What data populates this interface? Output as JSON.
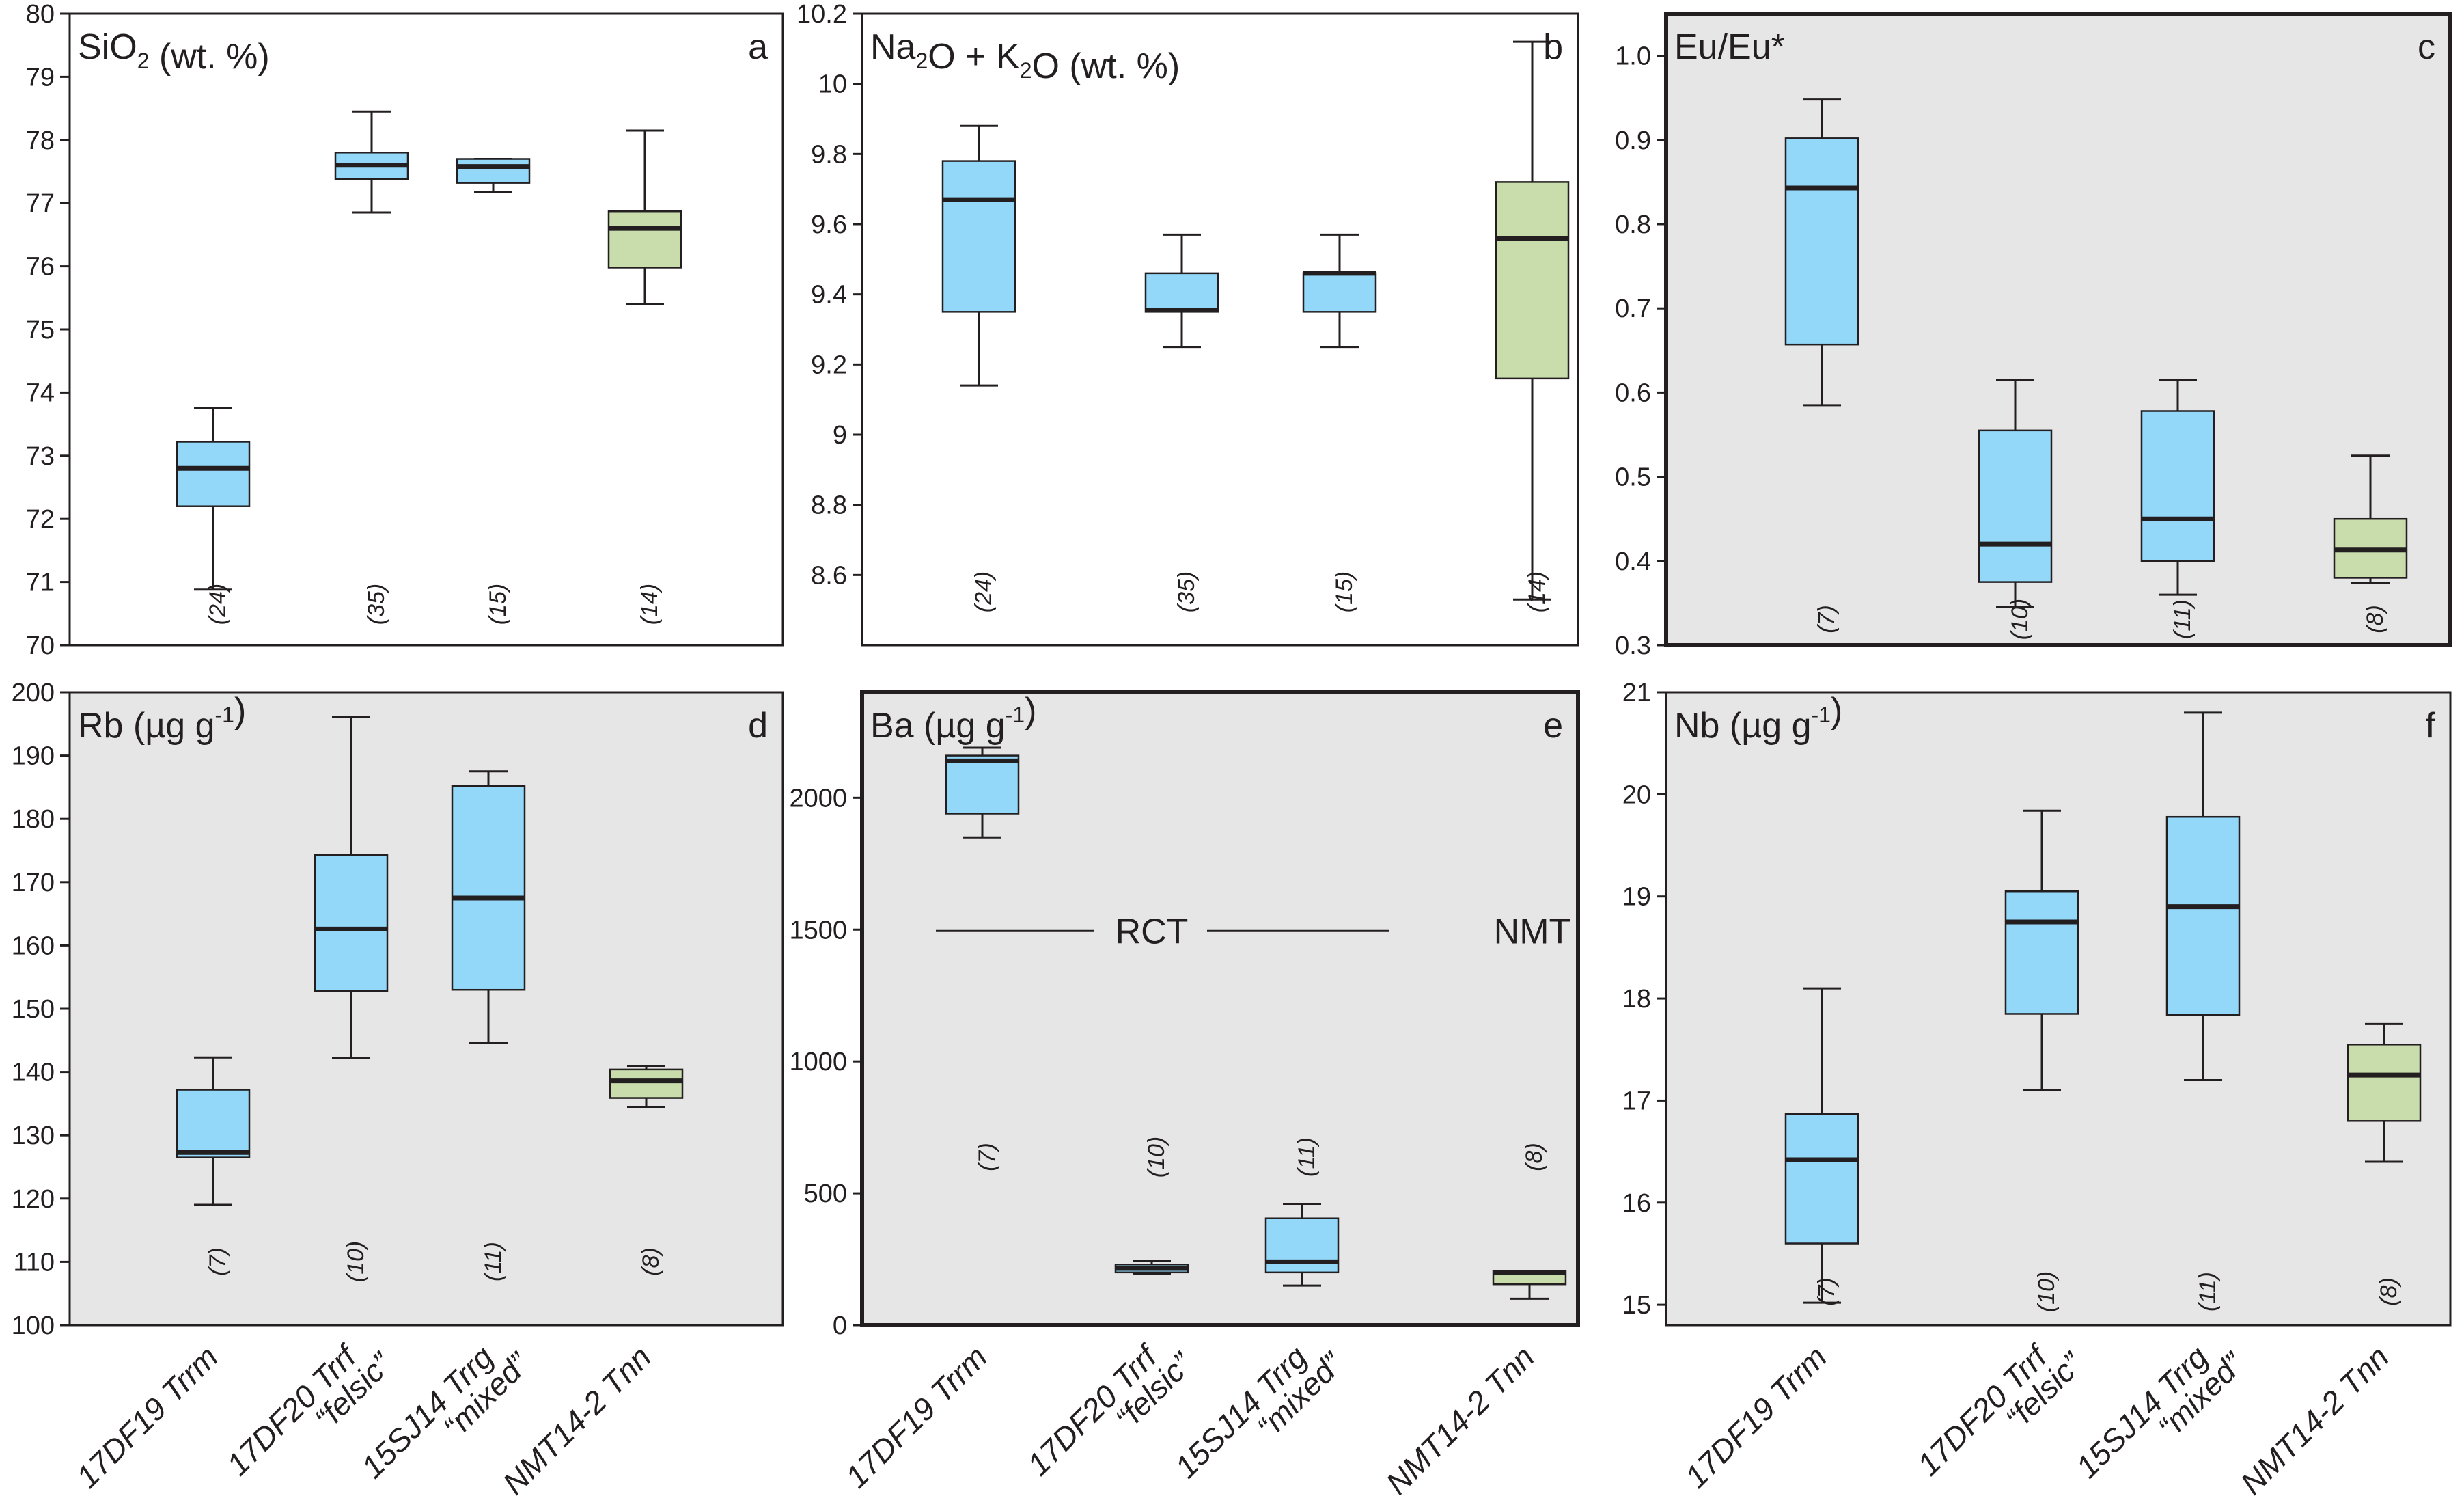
{
  "figure": {
    "colors": {
      "blue": "#93d8f8",
      "green": "#c8dcac",
      "panel_gray": "#e6e6e6",
      "line": "#231f20"
    },
    "categories": [
      {
        "id": "17DF19",
        "lines": [
          "17DF19 Trrm"
        ]
      },
      {
        "id": "17DF20",
        "lines": [
          "17DF20 Trrf",
          "“felsic”"
        ]
      },
      {
        "id": "15SJ14",
        "lines": [
          "15SJ14 Trrg",
          "“mixed”"
        ]
      },
      {
        "id": "NMT14-2",
        "lines": [
          "NMT14-2 Tnn"
        ]
      }
    ]
  },
  "chart_data": [
    {
      "type": "boxplot",
      "panel": "a",
      "title": "SiO₂ (wt. %)",
      "title_parts": [
        "SiO",
        "2",
        " (wt. %)"
      ],
      "ylim": [
        70,
        80
      ],
      "yticks": [
        "70",
        "71",
        "72",
        "73",
        "74",
        "75",
        "76",
        "77",
        "78",
        "79",
        "80"
      ],
      "boxes": [
        {
          "min": 70.88,
          "q1": 72.2,
          "median": 72.8,
          "q3": 73.22,
          "max": 73.75,
          "color": "blue",
          "n": "(24)"
        },
        {
          "min": 76.85,
          "q1": 77.38,
          "median": 77.6,
          "q3": 77.8,
          "max": 78.45,
          "color": "blue",
          "n": "(35)"
        },
        {
          "min": 77.18,
          "q1": 77.32,
          "median": 77.58,
          "q3": 77.7,
          "max": 77.7,
          "color": "blue",
          "n": "(15)"
        },
        {
          "min": 75.4,
          "q1": 75.98,
          "median": 76.6,
          "q3": 76.87,
          "max": 78.15,
          "color": "green",
          "n": "(14)"
        }
      ]
    },
    {
      "type": "boxplot",
      "panel": "b",
      "title": "Na₂O + K₂O (wt. %)",
      "title_parts": [
        "Na",
        "2",
        "O + K",
        "2",
        "O (wt. %)"
      ],
      "ylim": [
        8.4,
        10.2
      ],
      "yticks": [
        "8.6",
        "8.8",
        "9",
        "9.2",
        "9.4",
        "9.6",
        "9.8",
        "10",
        "10.2"
      ],
      "boxes": [
        {
          "min": 9.14,
          "q1": 9.35,
          "median": 9.67,
          "q3": 9.78,
          "max": 9.88,
          "color": "blue",
          "n": "(24)"
        },
        {
          "min": 9.25,
          "q1": 9.35,
          "median": 9.355,
          "q3": 9.46,
          "max": 9.57,
          "color": "blue",
          "n": "(35)"
        },
        {
          "min": 9.25,
          "q1": 9.35,
          "median": 9.46,
          "q3": 9.46,
          "max": 9.57,
          "color": "blue",
          "n": "(15)"
        },
        {
          "min": 8.53,
          "q1": 9.16,
          "median": 9.56,
          "q3": 9.72,
          "max": 10.12,
          "color": "green",
          "n": "(14)"
        }
      ]
    },
    {
      "type": "boxplot",
      "panel": "c",
      "title": "Eu/Eu*",
      "title_parts": [
        "Eu/Eu*"
      ],
      "ylim": [
        0.3,
        1.05
      ],
      "yticks": [
        "0.3",
        "0.4",
        "0.5",
        "0.6",
        "0.7",
        "0.8",
        "0.9",
        "1.0"
      ],
      "boxes": [
        {
          "min": 0.585,
          "q1": 0.657,
          "median": 0.843,
          "q3": 0.902,
          "max": 0.948,
          "color": "blue",
          "n": "(7)"
        },
        {
          "min": 0.345,
          "q1": 0.375,
          "median": 0.42,
          "q3": 0.555,
          "max": 0.615,
          "color": "blue",
          "n": "(10)"
        },
        {
          "min": 0.36,
          "q1": 0.4,
          "median": 0.45,
          "q3": 0.578,
          "max": 0.615,
          "color": "blue",
          "n": "(11)"
        },
        {
          "min": 0.374,
          "q1": 0.38,
          "median": 0.413,
          "q3": 0.45,
          "max": 0.525,
          "color": "green",
          "n": "(8)"
        }
      ]
    },
    {
      "type": "boxplot",
      "panel": "d",
      "title": "Rb (µg g⁻¹)",
      "title_parts": [
        "Rb (µg g",
        "-1",
        ")"
      ],
      "ylim": [
        100,
        200
      ],
      "yticks": [
        "100",
        "110",
        "120",
        "130",
        "140",
        "150",
        "160",
        "170",
        "180",
        "190",
        "200"
      ],
      "boxes": [
        {
          "min": 119,
          "q1": 126.5,
          "median": 127.3,
          "q3": 137.2,
          "max": 142.3,
          "color": "blue",
          "n": "(7)"
        },
        {
          "min": 142.2,
          "q1": 152.8,
          "median": 162.6,
          "q3": 174.3,
          "max": 196.1,
          "color": "blue",
          "n": "(10)"
        },
        {
          "min": 144.6,
          "q1": 153,
          "median": 167.5,
          "q3": 185.2,
          "max": 187.5,
          "color": "blue",
          "n": "(11)"
        },
        {
          "min": 134.5,
          "q1": 135.9,
          "median": 138.6,
          "q3": 140.4,
          "max": 140.9,
          "color": "green",
          "n": "(8)"
        }
      ]
    },
    {
      "type": "boxplot",
      "panel": "e",
      "title": "Ba (µg g⁻¹)",
      "title_parts": [
        "Ba (µg g",
        "-1",
        ")"
      ],
      "ylim": [
        0,
        2400
      ],
      "yticks": [
        "0",
        "500",
        "1000",
        "1500",
        "2000"
      ],
      "annotations": [
        "RCT",
        "NMT"
      ],
      "boxes": [
        {
          "min": 1850,
          "q1": 1940,
          "median": 2140,
          "q3": 2160,
          "max": 2190,
          "color": "blue",
          "n": "(7)"
        },
        {
          "min": 195,
          "q1": 200,
          "median": 215,
          "q3": 230,
          "max": 245,
          "color": "blue",
          "n": "(10)"
        },
        {
          "min": 150,
          "q1": 200,
          "median": 240,
          "q3": 405,
          "max": 460,
          "color": "blue",
          "n": "(11)"
        },
        {
          "min": 100,
          "q1": 155,
          "median": 200,
          "q3": 205,
          "max": 205,
          "color": "green",
          "n": "(8)"
        }
      ]
    },
    {
      "type": "boxplot",
      "panel": "f",
      "title": "Nb (µg g⁻¹)",
      "title_parts": [
        "Nb (µg g",
        "-1",
        ")"
      ],
      "ylim": [
        14.8,
        21
      ],
      "yticks": [
        "15",
        "16",
        "17",
        "18",
        "19",
        "20",
        "21"
      ],
      "boxes": [
        {
          "min": 15.02,
          "q1": 15.6,
          "median": 16.42,
          "q3": 16.87,
          "max": 18.1,
          "color": "blue",
          "n": "(7)"
        },
        {
          "min": 17.1,
          "q1": 17.85,
          "median": 18.75,
          "q3": 19.05,
          "max": 19.84,
          "color": "blue",
          "n": "(10)"
        },
        {
          "min": 17.2,
          "q1": 17.84,
          "median": 18.9,
          "q3": 19.78,
          "max": 20.8,
          "color": "blue",
          "n": "(11)"
        },
        {
          "min": 16.4,
          "q1": 16.8,
          "median": 17.25,
          "q3": 17.55,
          "max": 17.75,
          "color": "green",
          "n": "(8)"
        }
      ]
    }
  ]
}
